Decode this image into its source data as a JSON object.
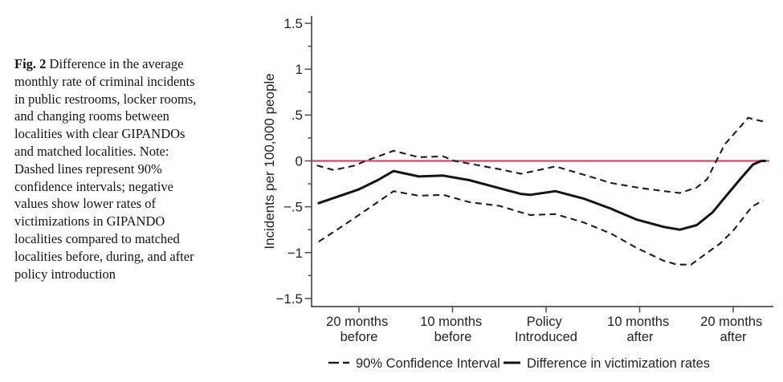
{
  "figure": {
    "caption": {
      "fig_label": "Fig. 2",
      "lines": [
        " Difference in the average",
        "monthly rate of criminal incidents",
        "in public restrooms, locker rooms,",
        "and changing rooms between",
        "localities with clear GIPANDOs",
        "and matched localities. Note:",
        "Dashed lines represent 90%",
        "confidence intervals; negative",
        "values show lower rates of",
        "victimizations in GIPANDO",
        "localities compared to matched",
        "localities before, during, and after",
        "policy introduction"
      ]
    }
  },
  "chart_data": {
    "type": "line",
    "title": "",
    "ylabel": "Incidents per 100,000 people",
    "xlabel": "",
    "ylim": [
      -1.5,
      1.5
    ],
    "xlim": [
      -25,
      24.5
    ],
    "x_units": "months relative to policy introduction",
    "grid": false,
    "zero_reference_line": {
      "value": 0,
      "color": "#d34a6e"
    },
    "yticks": [
      {
        "v": 1.5,
        "label": "1.5"
      },
      {
        "v": 1.0,
        "label": "1"
      },
      {
        "v": 0.5,
        "label": ".5"
      },
      {
        "v": 0.0,
        "label": "0"
      },
      {
        "v": -0.5,
        "label": "−.5"
      },
      {
        "v": -1.0,
        "label": "−1"
      },
      {
        "v": -1.5,
        "label": "−1.5"
      }
    ],
    "y_minor_ticks": [
      1.25,
      0.75,
      0.25,
      -0.25,
      -0.75,
      -1.25
    ],
    "xticks": [
      {
        "t": -20,
        "line1": "20 months",
        "line2": "before"
      },
      {
        "t": -10,
        "line1": "10 months",
        "line2": "before"
      },
      {
        "t": 0,
        "line1": "Policy",
        "line2": "Introduced"
      },
      {
        "t": 10,
        "line1": "10 months",
        "line2": "after"
      },
      {
        "t": 20,
        "line1": "20 months",
        "line2": "after"
      }
    ],
    "legend": [
      {
        "style": "dashed",
        "label": "90% Confidence Interval"
      },
      {
        "style": "solid",
        "label": "Difference in victimization rates"
      }
    ],
    "series": [
      {
        "name": "90% CI upper",
        "style": "dashed",
        "points": [
          [
            -24.5,
            -0.05
          ],
          [
            -22.7,
            -0.1
          ],
          [
            -20.4,
            -0.05
          ],
          [
            -19.3,
            0.0
          ],
          [
            -16.3,
            0.11
          ],
          [
            -13.6,
            0.04
          ],
          [
            -11.0,
            0.05
          ],
          [
            -9.8,
            0.0
          ],
          [
            -8.2,
            -0.03
          ],
          [
            -5.0,
            -0.09
          ],
          [
            -2.7,
            -0.14
          ],
          [
            -1.7,
            -0.12
          ],
          [
            1.0,
            -0.06
          ],
          [
            4.0,
            -0.15
          ],
          [
            6.9,
            -0.24
          ],
          [
            9.7,
            -0.29
          ],
          [
            12.6,
            -0.33
          ],
          [
            14.3,
            -0.35
          ],
          [
            16.1,
            -0.29
          ],
          [
            17.2,
            -0.2
          ],
          [
            17.8,
            -0.08
          ],
          [
            19.1,
            0.18
          ],
          [
            21.6,
            0.47
          ],
          [
            23.2,
            0.43
          ]
        ]
      },
      {
        "name": "90% CI lower",
        "style": "dashed",
        "points": [
          [
            -24.3,
            -0.88
          ],
          [
            -21.9,
            -0.72
          ],
          [
            -19.3,
            -0.54
          ],
          [
            -16.3,
            -0.33
          ],
          [
            -13.6,
            -0.38
          ],
          [
            -11.0,
            -0.37
          ],
          [
            -8.2,
            -0.45
          ],
          [
            -5.0,
            -0.49
          ],
          [
            -2.7,
            -0.56
          ],
          [
            -1.7,
            -0.59
          ],
          [
            1.0,
            -0.58
          ],
          [
            4.0,
            -0.67
          ],
          [
            6.9,
            -0.79
          ],
          [
            9.7,
            -0.95
          ],
          [
            12.6,
            -1.09
          ],
          [
            14.0,
            -1.13
          ],
          [
            15.5,
            -1.13
          ],
          [
            16.3,
            -1.07
          ],
          [
            18.6,
            -0.9
          ],
          [
            20.0,
            -0.76
          ],
          [
            22.0,
            -0.5
          ],
          [
            23.2,
            -0.43
          ]
        ]
      },
      {
        "name": "Difference in victimization rates",
        "style": "solid",
        "points": [
          [
            -24.3,
            -0.46
          ],
          [
            -22.0,
            -0.38
          ],
          [
            -20.0,
            -0.31
          ],
          [
            -18.0,
            -0.21
          ],
          [
            -16.3,
            -0.11
          ],
          [
            -13.6,
            -0.17
          ],
          [
            -11.0,
            -0.16
          ],
          [
            -8.2,
            -0.21
          ],
          [
            -5.3,
            -0.29
          ],
          [
            -2.7,
            -0.36
          ],
          [
            -1.7,
            -0.37
          ],
          [
            1.0,
            -0.33
          ],
          [
            4.0,
            -0.41
          ],
          [
            6.9,
            -0.52
          ],
          [
            9.7,
            -0.64
          ],
          [
            12.6,
            -0.72
          ],
          [
            14.3,
            -0.75
          ],
          [
            16.1,
            -0.7
          ],
          [
            17.8,
            -0.56
          ],
          [
            19.5,
            -0.35
          ],
          [
            20.9,
            -0.18
          ],
          [
            22.1,
            -0.04
          ],
          [
            23.0,
            0.0
          ],
          [
            23.4,
            0.0
          ]
        ]
      }
    ]
  }
}
